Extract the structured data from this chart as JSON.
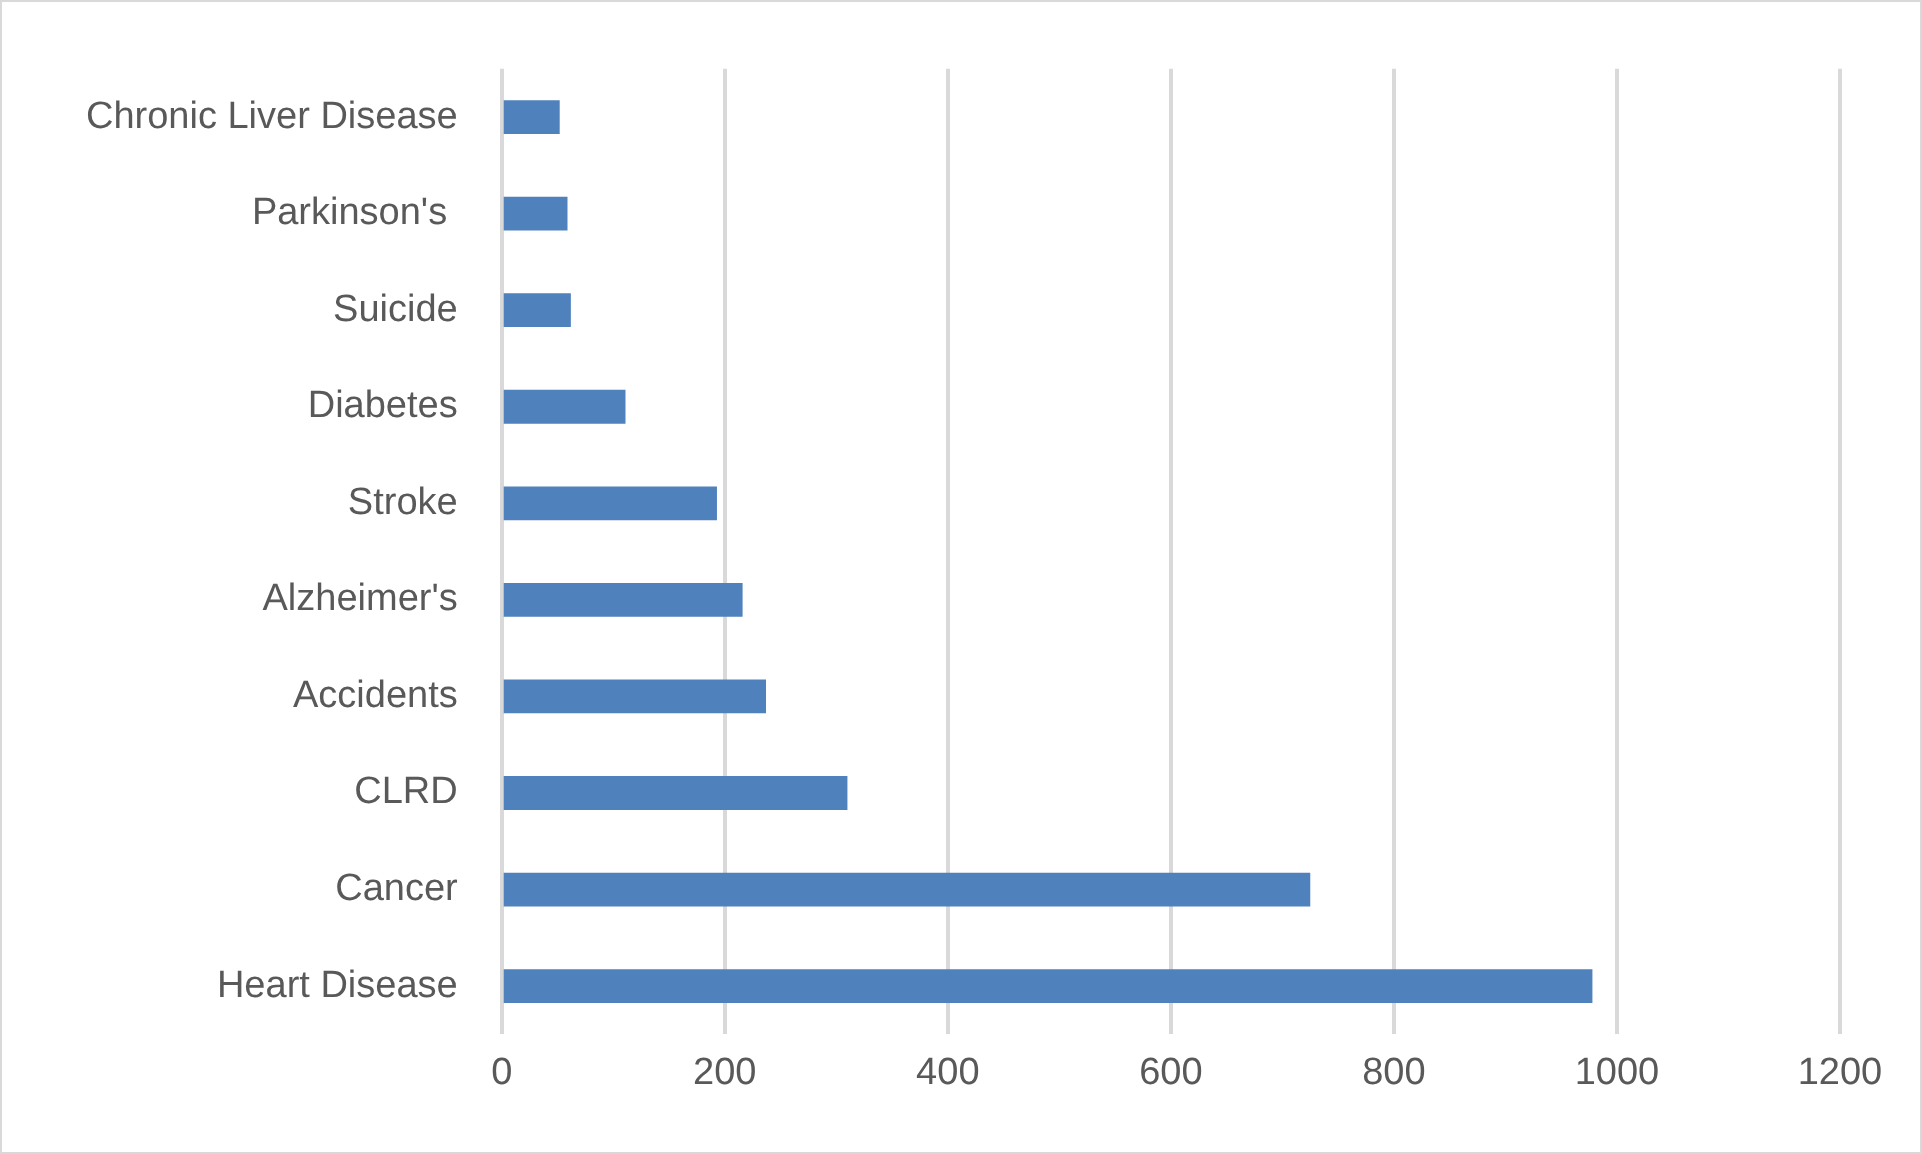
{
  "chart_data": {
    "type": "bar",
    "orientation": "horizontal",
    "categories": [
      "Chronic Liver Disease",
      "Parkinson's ",
      "Suicide",
      "Diabetes",
      "Stroke",
      "Alzheimer's",
      "Accidents",
      "CLRD",
      "Cancer",
      "Heart Disease"
    ],
    "values": [
      52,
      59,
      62,
      111,
      193,
      216,
      237,
      310,
      725,
      978
    ],
    "color": "#4f81bd",
    "xlim": [
      0,
      1200
    ],
    "xticks": [
      0,
      200,
      400,
      600,
      800,
      1000,
      1200
    ],
    "grid": "x",
    "legend": false
  }
}
